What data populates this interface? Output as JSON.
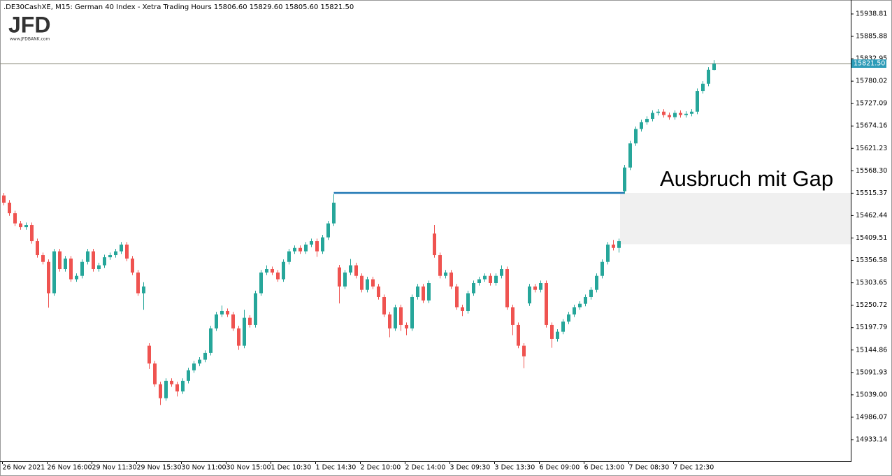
{
  "header": ".DE30CashXE, M15:  German 40 Index  - Xetra Trading Hours  15806.60 15829.60 15805.60 15821.50",
  "logo": {
    "name": "JFD",
    "url": "www.JFDBANK.com"
  },
  "chart_data": {
    "type": "candlestick",
    "annotation": "Ausbruch mit Gap",
    "up_color": "#26a69a",
    "down_color": "#ef5350",
    "ylim": [
      14881.9,
      15971.8
    ],
    "yticks": [
      15938.81,
      15885.88,
      15832.95,
      15780.02,
      15727.09,
      15674.16,
      15621.23,
      {
        "value": 15568.3,
        "label": "15568.30"
      },
      15515.37,
      15462.44,
      15409.51,
      15356.58,
      15303.65,
      15250.72,
      15197.79,
      15144.86,
      15091.93,
      {
        "value": 15039,
        "label": "15039.00"
      },
      14986.07,
      14933.14
    ],
    "last_price": {
      "value": 15821.5,
      "label": "15821.50"
    },
    "breakout_level": 15516,
    "gap_zone": [
      15395,
      15516
    ],
    "categories": [
      "26 Nov 2021",
      null,
      null,
      null,
      null,
      null,
      null,
      null,
      "26 Nov 16:00",
      null,
      null,
      null,
      null,
      null,
      null,
      null,
      "29 Nov 11:30",
      null,
      null,
      null,
      null,
      null,
      null,
      null,
      "29 Nov 15:30",
      null,
      null,
      null,
      null,
      null,
      null,
      null,
      "30 Nov 11:00",
      null,
      null,
      null,
      null,
      null,
      null,
      null,
      "30 Nov 15:00",
      null,
      null,
      null,
      null,
      null,
      null,
      null,
      "1 Dec 10:30",
      null,
      null,
      null,
      null,
      null,
      null,
      null,
      "1 Dec 14:30",
      null,
      null,
      null,
      null,
      null,
      null,
      null,
      "2 Dec 10:00",
      null,
      null,
      null,
      null,
      null,
      null,
      null,
      "2 Dec 14:00",
      null,
      null,
      null,
      null,
      null,
      null,
      null,
      "3 Dec 09:30",
      null,
      null,
      null,
      null,
      null,
      null,
      null,
      "3 Dec 13:30",
      null,
      null,
      null,
      null,
      null,
      null,
      null,
      "6 Dec 09:00",
      null,
      null,
      null,
      null,
      null,
      null,
      null,
      "6 Dec 13:00",
      null,
      null,
      null,
      null,
      null,
      null,
      null,
      "7 Dec 08:30",
      null,
      null,
      null,
      null,
      null,
      null,
      null,
      "7 Dec 12:30",
      null,
      null,
      null,
      null,
      null,
      null,
      null
    ],
    "open": [
      15510,
      15493,
      15468,
      15444,
      15435,
      15440,
      15402,
      15369,
      15353,
      15279,
      15378,
      15336,
      15361,
      15312,
      15320,
      15353,
      15378,
      15336,
      15345,
      15364,
      15369,
      15378,
      15394,
      15361,
      15328,
      15279,
      15155,
      15113,
      15064,
      15031,
      15072,
      15064,
      15047,
      15072,
      15097,
      15113,
      15122,
      15138,
      15196,
      15229,
      15237,
      15229,
      15196,
      15155,
      15221,
      15204,
      15279,
      15328,
      15336,
      15328,
      15312,
      15353,
      15378,
      15386,
      15378,
      15394,
      15402,
      15378,
      15411,
      15444,
      15340,
      15295,
      15328,
      15345,
      15320,
      15287,
      15312,
      15295,
      15270,
      15229,
      15196,
      15246,
      15204,
      15196,
      15270,
      15295,
      15262,
      15420,
      15369,
      15320,
      15328,
      15295,
      15246,
      15237,
      15279,
      15303,
      15312,
      15320,
      15303,
      15320,
      15336,
      15246,
      15204,
      15155,
      15255,
      15295,
      15287,
      15303,
      15204,
      15171,
      15188,
      15212,
      15229,
      15246,
      15254,
      15270,
      15287,
      15320,
      15353,
      15394,
      15386,
      15520,
      15576,
      15633,
      15667,
      15683,
      15691,
      15705,
      15708,
      15700,
      15695,
      15705,
      15700,
      15703,
      15708,
      15757,
      15774,
      15806.6
    ],
    "high": [
      15516,
      15499,
      15474,
      15450,
      15446,
      15446,
      15408,
      15375,
      15359,
      15384,
      15384,
      15367,
      15367,
      15326,
      15359,
      15384,
      15384,
      15351,
      15370,
      15375,
      15384,
      15400,
      15400,
      15367,
      15334,
      15305,
      15161,
      15119,
      15070,
      15078,
      15078,
      15070,
      15078,
      15103,
      15119,
      15128,
      15144,
      15202,
      15235,
      15250,
      15243,
      15235,
      15202,
      15240,
      15227,
      15285,
      15334,
      15345,
      15342,
      15334,
      15359,
      15384,
      15392,
      15392,
      15400,
      15408,
      15408,
      15417,
      15450,
      15513,
      15346,
      15334,
      15360,
      15351,
      15326,
      15318,
      15318,
      15301,
      15276,
      15235,
      15252,
      15252,
      15210,
      15276,
      15301,
      15301,
      15309,
      15440,
      15375,
      15334,
      15334,
      15301,
      15252,
      15285,
      15309,
      15318,
      15326,
      15326,
      15326,
      15345,
      15342,
      15252,
      15210,
      15161,
      15301,
      15301,
      15309,
      15309,
      15210,
      15194,
      15218,
      15235,
      15252,
      15260,
      15276,
      15293,
      15326,
      15359,
      15400,
      15405,
      15408,
      15582,
      15639,
      15673,
      15689,
      15697,
      15711,
      15714,
      15714,
      15706,
      15711,
      15711,
      15709,
      15714,
      15763,
      15780,
      15813,
      15829.6
    ],
    "low": [
      15487,
      15462,
      15438,
      15429,
      15429,
      15396,
      15363,
      15347,
      15245,
      15273,
      15330,
      15330,
      15306,
      15306,
      15314,
      15347,
      15330,
      15330,
      15339,
      15358,
      15363,
      15372,
      15355,
      15322,
      15273,
      15240,
      15100,
      15058,
      15015,
      15025,
      15058,
      15035,
      15041,
      15066,
      15091,
      15107,
      15116,
      15132,
      15190,
      15223,
      15223,
      15190,
      15145,
      15149,
      15198,
      15198,
      15273,
      15322,
      15322,
      15306,
      15306,
      15347,
      15372,
      15372,
      15372,
      15388,
      15365,
      15372,
      15405,
      15438,
      15255,
      15289,
      15322,
      15314,
      15281,
      15281,
      15289,
      15264,
      15223,
      15175,
      15190,
      15190,
      15180,
      15190,
      15264,
      15256,
      15256,
      15363,
      15314,
      15314,
      15289,
      15240,
      15225,
      15231,
      15273,
      15297,
      15306,
      15297,
      15297,
      15314,
      15240,
      15180,
      15149,
      15102,
      15249,
      15281,
      15281,
      15198,
      15150,
      15165,
      15182,
      15206,
      15223,
      15240,
      15248,
      15264,
      15281,
      15314,
      15347,
      15380,
      15375,
      15514,
      15570,
      15627,
      15661,
      15677,
      15685,
      15699,
      15694,
      15689,
      15689,
      15694,
      15694,
      15697,
      15702,
      15751,
      15768,
      15805.6
    ],
    "close": [
      15493,
      15468,
      15444,
      15435,
      15440,
      15402,
      15369,
      15353,
      15279,
      15378,
      15336,
      15361,
      15312,
      15320,
      15353,
      15378,
      15336,
      15345,
      15364,
      15369,
      15378,
      15394,
      15361,
      15328,
      15279,
      15295,
      15113,
      15064,
      15031,
      15072,
      15064,
      15047,
      15072,
      15097,
      15113,
      15122,
      15138,
      15196,
      15229,
      15237,
      15229,
      15196,
      15155,
      15221,
      15204,
      15279,
      15328,
      15336,
      15328,
      15312,
      15353,
      15378,
      15386,
      15378,
      15394,
      15402,
      15378,
      15411,
      15444,
      15493,
      15295,
      15328,
      15345,
      15320,
      15287,
      15312,
      15295,
      15270,
      15229,
      15196,
      15246,
      15204,
      15196,
      15270,
      15295,
      15262,
      15303,
      15369,
      15320,
      15328,
      15295,
      15246,
      15237,
      15279,
      15303,
      15312,
      15320,
      15303,
      15320,
      15336,
      15246,
      15204,
      15155,
      15130,
      15295,
      15287,
      15303,
      15204,
      15171,
      15188,
      15212,
      15229,
      15246,
      15254,
      15270,
      15287,
      15320,
      15353,
      15394,
      15386,
      15402,
      15576,
      15633,
      15667,
      15683,
      15691,
      15705,
      15708,
      15700,
      15695,
      15705,
      15700,
      15703,
      15708,
      15757,
      15774,
      15807,
      15821.5
    ]
  }
}
